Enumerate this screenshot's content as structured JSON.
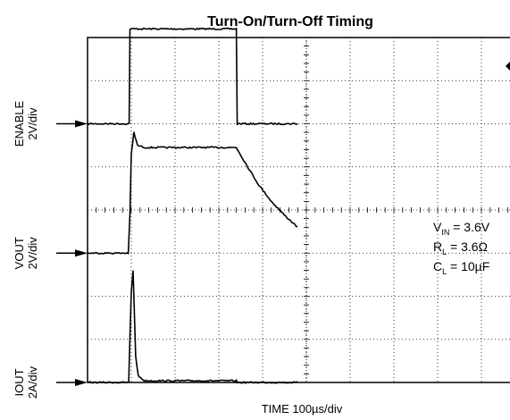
{
  "chart_data": {
    "type": "line",
    "title": "Turn-On/Turn-Off Timing",
    "xlabel": "TIME 100µs/div",
    "grid": true,
    "x_divisions": 10,
    "y_divisions": 8,
    "channels": [
      {
        "name": "ENABLE",
        "scale": "2V/div",
        "ground_div_from_top": 2,
        "points": [
          [
            0,
            0
          ],
          [
            0.95,
            0
          ],
          [
            0.97,
            2.2
          ],
          [
            3.4,
            2.2
          ],
          [
            3.42,
            0
          ],
          [
            4.8,
            0
          ]
        ]
      },
      {
        "name": "VOUT",
        "scale": "2V/div",
        "ground_div_from_top": 5,
        "points": [
          [
            0,
            0
          ],
          [
            0.93,
            0
          ],
          [
            0.97,
            0.9
          ],
          [
            1.0,
            2.3
          ],
          [
            1.06,
            2.8
          ],
          [
            1.14,
            2.5
          ],
          [
            1.3,
            2.45
          ],
          [
            3.4,
            2.45
          ],
          [
            3.6,
            2.1
          ],
          [
            3.9,
            1.6
          ],
          [
            4.2,
            1.2
          ],
          [
            4.5,
            0.88
          ],
          [
            4.8,
            0.6
          ]
        ]
      },
      {
        "name": "IOUT",
        "scale": "2A/div",
        "ground_div_from_top": 8,
        "points": [
          [
            0,
            0
          ],
          [
            0.94,
            0
          ],
          [
            1.0,
            2.1
          ],
          [
            1.04,
            2.6
          ],
          [
            1.06,
            2.0
          ],
          [
            1.1,
            0.6
          ],
          [
            1.16,
            0.15
          ],
          [
            1.3,
            0.04
          ],
          [
            3.4,
            0.04
          ],
          [
            3.42,
            0
          ],
          [
            4.8,
            0
          ]
        ]
      }
    ]
  },
  "annotation": {
    "vin_pre": "V",
    "vin_sub": "IN",
    "vin_post": " = 3.6V",
    "rl_pre": "R",
    "rl_sub": "L",
    "rl_post": " = 3.6Ω",
    "cl_pre": "C",
    "cl_sub": "L",
    "cl_post": " = 10µF"
  },
  "colors": {
    "trace": "#000000",
    "grid": "#000000",
    "marker": "#000000"
  }
}
